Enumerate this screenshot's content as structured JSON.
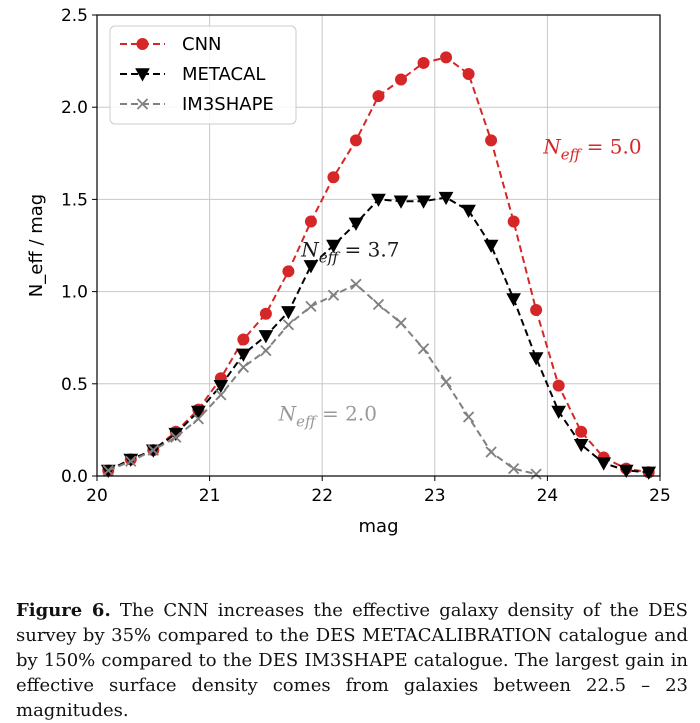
{
  "chart_data": {
    "type": "line",
    "xlabel": "mag",
    "ylabel": "N_eff / mag",
    "xlim": [
      20,
      25
    ],
    "ylim": [
      0,
      2.5
    ],
    "xticks": [
      "20",
      "21",
      "22",
      "23",
      "24",
      "25"
    ],
    "yticks": [
      "0.0",
      "0.5",
      "1.0",
      "1.5",
      "2.0",
      "2.5"
    ],
    "grid": true,
    "legend_position": "top-left",
    "series": [
      {
        "name": "CNN",
        "color": "#d62728",
        "marker": "circle",
        "x": [
          20.1,
          20.3,
          20.5,
          20.7,
          20.9,
          21.1,
          21.3,
          21.5,
          21.7,
          21.9,
          22.1,
          22.3,
          22.5,
          22.7,
          22.9,
          23.1,
          23.3,
          23.5,
          23.7,
          23.9,
          24.1,
          24.3,
          24.5,
          24.7,
          24.9
        ],
        "y": [
          0.03,
          0.09,
          0.14,
          0.24,
          0.36,
          0.53,
          0.74,
          0.88,
          1.11,
          1.38,
          1.62,
          1.82,
          2.06,
          2.15,
          2.24,
          2.27,
          2.18,
          1.82,
          1.38,
          0.9,
          0.49,
          0.24,
          0.1,
          0.04,
          0.02
        ]
      },
      {
        "name": "METACAL",
        "color": "#000000",
        "marker": "triangle-down",
        "x": [
          20.1,
          20.3,
          20.5,
          20.7,
          20.9,
          21.1,
          21.3,
          21.5,
          21.7,
          21.9,
          22.1,
          22.3,
          22.5,
          22.7,
          22.9,
          23.1,
          23.3,
          23.5,
          23.7,
          23.9,
          24.1,
          24.3,
          24.5,
          24.7,
          24.9
        ],
        "y": [
          0.03,
          0.09,
          0.14,
          0.23,
          0.35,
          0.49,
          0.66,
          0.76,
          0.89,
          1.14,
          1.25,
          1.37,
          1.5,
          1.49,
          1.49,
          1.51,
          1.44,
          1.25,
          0.96,
          0.64,
          0.35,
          0.17,
          0.07,
          0.03,
          0.02
        ]
      },
      {
        "name": "IM3SHAPE",
        "color": "#808080",
        "marker": "x",
        "x": [
          20.1,
          20.3,
          20.5,
          20.7,
          20.9,
          21.1,
          21.3,
          21.5,
          21.7,
          21.9,
          22.1,
          22.3,
          22.5,
          22.7,
          22.9,
          23.1,
          23.3,
          23.5,
          23.7,
          23.9
        ],
        "y": [
          0.03,
          0.08,
          0.14,
          0.21,
          0.31,
          0.44,
          0.59,
          0.68,
          0.82,
          0.92,
          0.98,
          1.04,
          0.93,
          0.83,
          0.69,
          0.51,
          0.32,
          0.13,
          0.04,
          0.01
        ]
      }
    ],
    "annotations": [
      {
        "text": "N_eff = 5.0",
        "x": 24.4,
        "y": 1.75,
        "color": "#d62728"
      },
      {
        "text": "N_eff = 3.7",
        "x": 22.25,
        "y": 1.19,
        "color": "#1a1a1a"
      },
      {
        "text": "N_eff = 2.0",
        "x": 22.05,
        "y": 0.3,
        "color": "#999999"
      }
    ]
  },
  "caption": {
    "label": "Figure 6.",
    "text": "The CNN increases the effective galaxy density of the DES survey by 35% compared to the DES METACALIBRATION catalogue and by 150% compared to the DES IM3SHAPE catalogue. The largest gain in effective surface density comes from galaxies between 22.5 – 23 magnitudes."
  }
}
